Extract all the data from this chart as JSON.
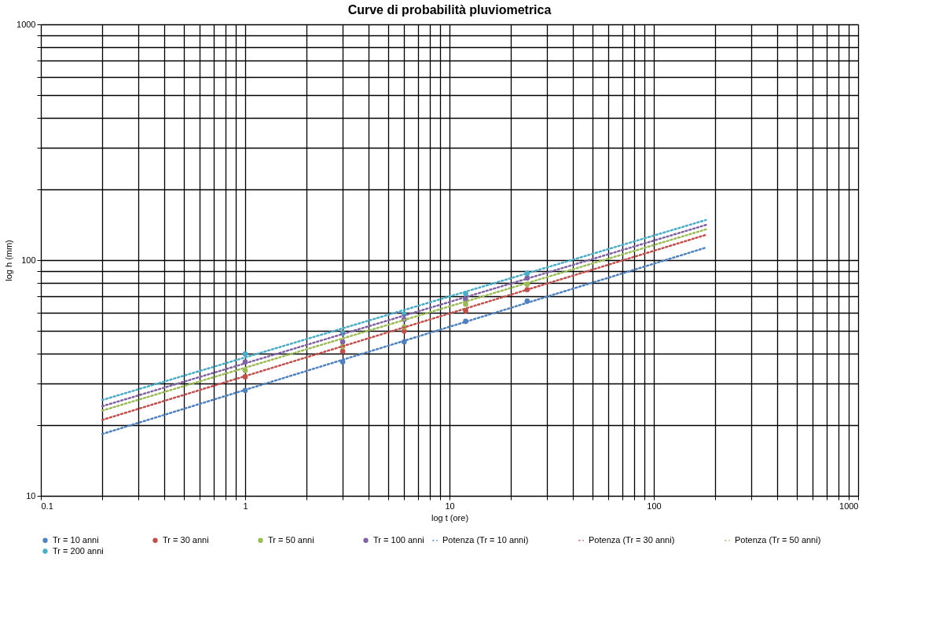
{
  "chart_data": {
    "type": "scatter",
    "title": "Curve di probabilità pluviometrica",
    "xlabel": "log t (ore)",
    "ylabel": "log h (mm)",
    "log": "xy",
    "grid": true,
    "legend": "bottom",
    "xlim": [
      0.1,
      1000
    ],
    "ylim": [
      10,
      1000
    ],
    "xticks": [
      0.1,
      {
        "value": 0.2,
        "label": null
      },
      {
        "value": 0.3,
        "label": null
      },
      {
        "value": 0.4,
        "label": null
      },
      {
        "value": 0.5,
        "label": null
      },
      {
        "value": 0.6,
        "label": null
      },
      {
        "value": 0.7,
        "label": null
      },
      {
        "value": 0.8,
        "label": null
      },
      {
        "value": 0.9,
        "label": null
      },
      1,
      {
        "value": 2,
        "label": null
      },
      {
        "value": 3,
        "label": null
      },
      {
        "value": 4,
        "label": null
      },
      {
        "value": 5,
        "label": null
      },
      {
        "value": 6,
        "label": null
      },
      {
        "value": 7,
        "label": null
      },
      {
        "value": 8,
        "label": null
      },
      {
        "value": 9,
        "label": null
      },
      10,
      {
        "value": 20,
        "label": null
      },
      {
        "value": 30,
        "label": null
      },
      {
        "value": 40,
        "label": null
      },
      {
        "value": 50,
        "label": null
      },
      {
        "value": 60,
        "label": null
      },
      {
        "value": 70,
        "label": null
      },
      {
        "value": 80,
        "label": null
      },
      {
        "value": 90,
        "label": null
      },
      100,
      {
        "value": 200,
        "label": null
      },
      {
        "value": 300,
        "label": null
      },
      {
        "value": 400,
        "label": null
      },
      {
        "value": 500,
        "label": null
      },
      {
        "value": 600,
        "label": null
      },
      {
        "value": 700,
        "label": null
      },
      {
        "value": 800,
        "label": null
      },
      {
        "value": 900,
        "label": null
      },
      1000
    ],
    "yticks": [
      10,
      {
        "value": 20,
        "label": null
      },
      {
        "value": 30,
        "label": null
      },
      {
        "value": 40,
        "label": null
      },
      {
        "value": 50,
        "label": null
      },
      {
        "value": 60,
        "label": null
      },
      {
        "value": 70,
        "label": null
      },
      {
        "value": 80,
        "label": null
      },
      {
        "value": 90,
        "label": null
      },
      100,
      {
        "value": 200,
        "label": null
      },
      {
        "value": 300,
        "label": null
      },
      {
        "value": 400,
        "label": null
      },
      {
        "value": 500,
        "label": null
      },
      {
        "value": 600,
        "label": null
      },
      {
        "value": 700,
        "label": null
      },
      {
        "value": 800,
        "label": null
      },
      {
        "value": 900,
        "label": null
      },
      1000
    ],
    "series": [
      {
        "name": "Tr = 10 anni",
        "marker": "circle",
        "color": "#4f81bd",
        "x": [
          1,
          3,
          6,
          12,
          24
        ],
        "values": [
          28,
          37,
          45,
          55,
          67
        ]
      },
      {
        "name": "Tr = 30 anni",
        "marker": "circle",
        "color": "#c0504d",
        "x": [
          1,
          3,
          6,
          12,
          24
        ],
        "values": [
          32,
          41,
          50,
          61,
          75
        ]
      },
      {
        "name": "Tr = 50 anni",
        "marker": "circle",
        "color": "#9bbb59",
        "x": [
          1,
          3,
          6,
          12,
          24
        ],
        "values": [
          34,
          43,
          52,
          65,
          79
        ]
      },
      {
        "name": "Tr = 100 anni",
        "marker": "circle",
        "color": "#8064a2",
        "x": [
          1,
          3,
          6,
          12,
          24
        ],
        "values": [
          37,
          45,
          56,
          68,
          84
        ]
      },
      {
        "name": "Tr = 200 anni",
        "marker": "circle",
        "color": "#4bacc6",
        "x": [
          1,
          3,
          6,
          12,
          24
        ],
        "values": [
          40,
          49,
          59,
          72,
          88
        ]
      },
      {
        "name": "Potenza (Tr = 10 anni)",
        "type": "line",
        "marker": "none",
        "line_style": "dotted",
        "color": "#4f81bd",
        "x": [
          0.2,
          180
        ],
        "values": [
          18.3,
          113
        ]
      },
      {
        "name": "Potenza (Tr = 30 anni)",
        "type": "line",
        "marker": "none",
        "line_style": "dotted",
        "color": "#c0504d",
        "x": [
          0.2,
          180
        ],
        "values": [
          21,
          128
        ]
      },
      {
        "name": "Potenza (Tr = 50 anni)",
        "type": "line",
        "marker": "none",
        "line_style": "dotted",
        "color": "#9bbb59",
        "x": [
          0.2,
          180
        ],
        "values": [
          23,
          135
        ]
      },
      {
        "type": "line",
        "marker": "none",
        "line_style": "dotted",
        "color": "#8064a2",
        "x": [
          0.2,
          180
        ],
        "values": [
          24,
          141
        ]
      },
      {
        "type": "line",
        "marker": "none",
        "line_style": "dotted",
        "color": "#4bacc6",
        "x": [
          0.2,
          180
        ],
        "values": [
          25.5,
          148
        ]
      }
    ]
  }
}
